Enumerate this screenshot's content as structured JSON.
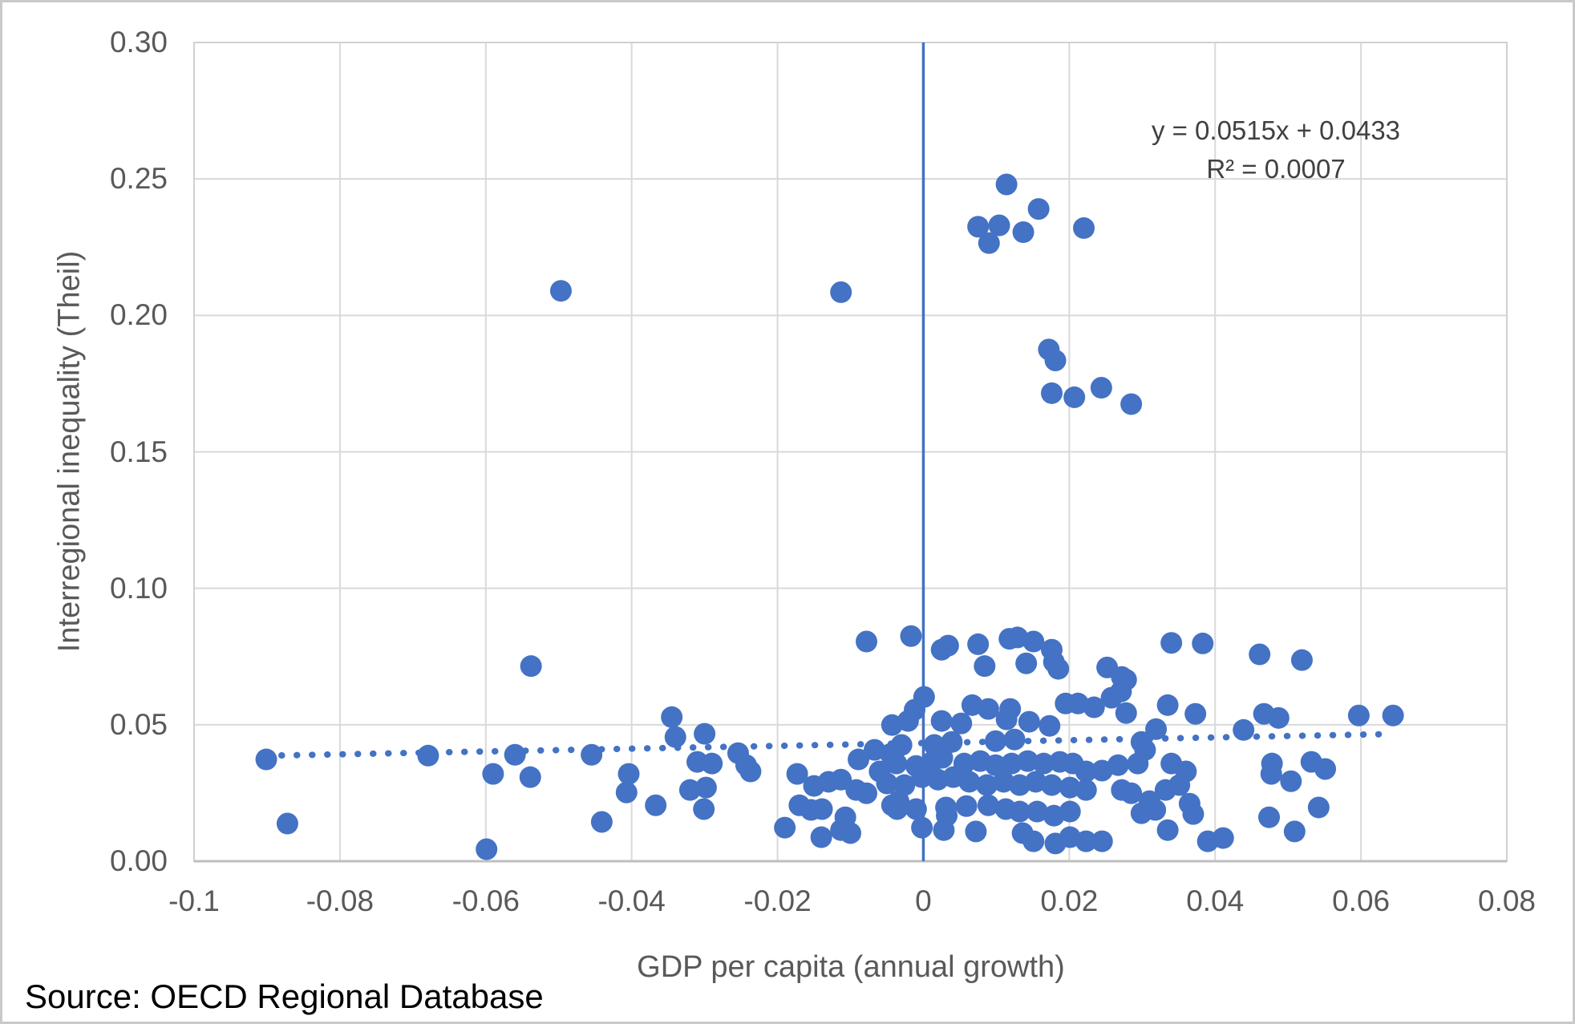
{
  "figure": {
    "source_note": "Source: OECD Regional Database"
  },
  "chart_data": {
    "type": "scatter",
    "title": "",
    "xlabel": "GDP per capita (annual growth)",
    "ylabel": "Interregional inequality (Theil)",
    "xlim": [
      -0.1,
      0.08
    ],
    "ylim": [
      0,
      0.3
    ],
    "grid": true,
    "legend": "none",
    "x_ticks": [
      {
        "value": -0.1,
        "label": "-0.1"
      },
      {
        "value": -0.08,
        "label": "-0.08"
      },
      {
        "value": -0.06,
        "label": "-0.06"
      },
      {
        "value": -0.04,
        "label": "-0.04"
      },
      {
        "value": -0.02,
        "label": "-0.02"
      },
      {
        "value": 0,
        "label": "0"
      },
      {
        "value": 0.02,
        "label": "0.02"
      },
      {
        "value": 0.04,
        "label": "0.04"
      },
      {
        "value": 0.06,
        "label": "0.06"
      },
      {
        "value": 0.08,
        "label": "0.08"
      }
    ],
    "y_ticks": [
      {
        "value": 0.0,
        "label": "0.00"
      },
      {
        "value": 0.05,
        "label": "0.05"
      },
      {
        "value": 0.1,
        "label": "0.10"
      },
      {
        "value": 0.15,
        "label": "0.15"
      },
      {
        "value": 0.2,
        "label": "0.20"
      },
      {
        "value": 0.25,
        "label": "0.25"
      },
      {
        "value": 0.3,
        "label": "0.30"
      }
    ],
    "zero_line": {
      "x": 0,
      "color": "#4472C4"
    },
    "trendline": {
      "slope": 0.0515,
      "intercept": 0.0433,
      "x_start": -0.0901,
      "x_end": 0.0641,
      "style": "dotted",
      "label_lines": [
        "y = 0.0515x + 0.0433",
        "R² = 0.0007"
      ]
    },
    "marker": {
      "color": "#4472C4",
      "radius_px": 13.5
    },
    "colors": {
      "accent": "#4472C4",
      "gridline": "#D9D9D9",
      "plot_border": "#D0D0D0",
      "axis_line": "#BFBFBF",
      "tick_text": "#595959",
      "annotation_text": "#404040"
    },
    "points": [
      [
        0.0114,
        0.248
      ],
      [
        0.0158,
        0.239
      ],
      [
        0.0075,
        0.2325
      ],
      [
        0.0104,
        0.233
      ],
      [
        0.009,
        0.2265
      ],
      [
        0.0137,
        0.2305
      ],
      [
        0.022,
        0.232
      ],
      [
        0.0172,
        0.1875
      ],
      [
        0.0181,
        0.1835
      ],
      [
        0.0176,
        0.1715
      ],
      [
        0.0207,
        0.17
      ],
      [
        0.0244,
        0.1735
      ],
      [
        0.0285,
        0.1675
      ],
      [
        -0.0497,
        0.209
      ],
      [
        -0.0113,
        0.2085
      ],
      [
        -0.0538,
        0.0715
      ],
      [
        -0.0078,
        0.0805
      ],
      [
        -0.0017,
        0.0825
      ],
      [
        0.0025,
        0.0775
      ],
      [
        0.0034,
        0.079
      ],
      [
        0.0075,
        0.0795
      ],
      [
        0.0084,
        0.0715
      ],
      [
        0.0118,
        0.0815
      ],
      [
        0.0129,
        0.082
      ],
      [
        0.0151,
        0.0805
      ],
      [
        0.0141,
        0.0725
      ],
      [
        0.0176,
        0.0775
      ],
      [
        0.0179,
        0.073
      ],
      [
        0.0185,
        0.0705
      ],
      [
        0.0252,
        0.071
      ],
      [
        0.0272,
        0.0675
      ],
      [
        0.0278,
        0.0665
      ],
      [
        0.034,
        0.08
      ],
      [
        0.0383,
        0.0798
      ],
      [
        0.0461,
        0.0758
      ],
      [
        0.0519,
        0.0737
      ],
      [
        -0.0901,
        0.0373
      ],
      [
        -0.0872,
        0.0138
      ],
      [
        -0.0679,
        0.0387
      ],
      [
        -0.059,
        0.032
      ],
      [
        -0.056,
        0.039
      ],
      [
        -0.0539,
        0.0308
      ],
      [
        -0.0599,
        0.0044
      ],
      [
        -0.0455,
        0.039
      ],
      [
        -0.0441,
        0.0144
      ],
      [
        -0.0404,
        0.032
      ],
      [
        -0.0407,
        0.0252
      ],
      [
        -0.0345,
        0.0528
      ],
      [
        -0.034,
        0.0455
      ],
      [
        -0.03,
        0.0467
      ],
      [
        -0.031,
        0.0364
      ],
      [
        -0.029,
        0.0358
      ],
      [
        -0.032,
        0.0261
      ],
      [
        -0.0298,
        0.027
      ],
      [
        -0.0301,
        0.0191
      ],
      [
        -0.0367,
        0.0205
      ],
      [
        -0.0254,
        0.0396
      ],
      [
        -0.0243,
        0.0352
      ],
      [
        -0.0237,
        0.0329
      ],
      [
        -0.0173,
        0.032
      ],
      [
        -0.015,
        0.0276
      ],
      [
        -0.013,
        0.0291
      ],
      [
        -0.0113,
        0.0299
      ],
      [
        -0.017,
        0.0205
      ],
      [
        -0.0154,
        0.0188
      ],
      [
        -0.0139,
        0.0191
      ],
      [
        -0.019,
        0.0123
      ],
      [
        -0.014,
        0.0088
      ],
      [
        -0.0113,
        0.0114
      ],
      [
        -0.01,
        0.0103
      ],
      [
        -0.0107,
        0.0161
      ],
      [
        -0.0092,
        0.0261
      ],
      [
        -0.0078,
        0.0249
      ],
      [
        -0.0089,
        0.0373
      ],
      [
        -0.0067,
        0.0408
      ],
      [
        -0.006,
        0.0329
      ],
      [
        -0.005,
        0.0285
      ],
      [
        -0.0026,
        0.0279
      ],
      [
        -0.0034,
        0.022
      ],
      [
        -0.0043,
        0.0205
      ],
      [
        -0.0036,
        0.0191
      ],
      [
        -0.0043,
        0.0499
      ],
      [
        -0.0021,
        0.0514
      ],
      [
        -0.0012,
        0.0555
      ],
      [
        -0.003,
        0.0426
      ],
      [
        -0.0045,
        0.0393
      ],
      [
        -0.0037,
        0.0358
      ],
      [
        -0.001,
        0.0349
      ],
      [
        0.0001,
        0.0602
      ],
      [
        0.0025,
        0.0514
      ],
      [
        0.0052,
        0.0505
      ],
      [
        0.0067,
        0.0572
      ],
      [
        0.0089,
        0.0558
      ],
      [
        0.0015,
        0.0426
      ],
      [
        0.0039,
        0.0437
      ],
      [
        0.0099,
        0.044
      ],
      [
        0.0012,
        0.0364
      ],
      [
        0.0026,
        0.0379
      ],
      [
        0.0056,
        0.0358
      ],
      [
        0.0078,
        0.0367
      ],
      [
        0.0099,
        0.0352
      ],
      [
        -0.0002,
        0.0308
      ],
      [
        0.002,
        0.0299
      ],
      [
        0.0041,
        0.0308
      ],
      [
        0.0063,
        0.0291
      ],
      [
        0.0087,
        0.0279
      ],
      [
        -0.001,
        0.0191
      ],
      [
        0.0031,
        0.0197
      ],
      [
        0.0032,
        0.0167
      ],
      [
        0.0059,
        0.0202
      ],
      [
        0.0089,
        0.0205
      ],
      [
        -0.0002,
        0.0123
      ],
      [
        0.0028,
        0.0114
      ],
      [
        0.0072,
        0.0109
      ],
      [
        0.0119,
        0.0558
      ],
      [
        0.0145,
        0.0511
      ],
      [
        0.0173,
        0.0496
      ],
      [
        0.0195,
        0.0578
      ],
      [
        0.0114,
        0.052
      ],
      [
        0.0125,
        0.0446
      ],
      [
        0.0121,
        0.0358
      ],
      [
        0.0143,
        0.0367
      ],
      [
        0.0165,
        0.0358
      ],
      [
        0.0187,
        0.0364
      ],
      [
        0.011,
        0.0291
      ],
      [
        0.0132,
        0.0279
      ],
      [
        0.0154,
        0.0291
      ],
      [
        0.0176,
        0.0279
      ],
      [
        0.0113,
        0.0191
      ],
      [
        0.0132,
        0.0182
      ],
      [
        0.0156,
        0.0182
      ],
      [
        0.0179,
        0.0167
      ],
      [
        0.0136,
        0.0103
      ],
      [
        0.0151,
        0.0073
      ],
      [
        0.0181,
        0.0065
      ],
      [
        0.0212,
        0.0578
      ],
      [
        0.0234,
        0.0564
      ],
      [
        0.0258,
        0.0599
      ],
      [
        0.0271,
        0.0622
      ],
      [
        0.0205,
        0.0358
      ],
      [
        0.0223,
        0.0329
      ],
      [
        0.0245,
        0.0332
      ],
      [
        0.0201,
        0.027
      ],
      [
        0.0223,
        0.0261
      ],
      [
        0.0201,
        0.0182
      ],
      [
        0.0201,
        0.0088
      ],
      [
        0.0223,
        0.0073
      ],
      [
        0.0245,
        0.0073
      ],
      [
        0.0267,
        0.0352
      ],
      [
        0.0272,
        0.0261
      ],
      [
        0.0285,
        0.0249
      ],
      [
        0.0299,
        0.0437
      ],
      [
        0.0294,
        0.0358
      ],
      [
        0.0299,
        0.0176
      ],
      [
        0.0335,
        0.0572
      ],
      [
        0.0373,
        0.054
      ],
      [
        0.0278,
        0.0543
      ],
      [
        0.0319,
        0.0484
      ],
      [
        0.0304,
        0.0408
      ],
      [
        0.031,
        0.022
      ],
      [
        0.0332,
        0.0261
      ],
      [
        0.0351,
        0.0279
      ],
      [
        0.0318,
        0.0188
      ],
      [
        0.0365,
        0.0211
      ],
      [
        0.037,
        0.0173
      ],
      [
        0.034,
        0.0358
      ],
      [
        0.036,
        0.0329
      ],
      [
        0.0335,
        0.0114
      ],
      [
        0.039,
        0.0073
      ],
      [
        0.0411,
        0.0085
      ],
      [
        0.0439,
        0.0481
      ],
      [
        0.0467,
        0.054
      ],
      [
        0.0487,
        0.0525
      ],
      [
        0.0597,
        0.0534
      ],
      [
        0.0644,
        0.0534
      ],
      [
        0.0478,
        0.0358
      ],
      [
        0.0477,
        0.032
      ],
      [
        0.0504,
        0.0293
      ],
      [
        0.0532,
        0.0364
      ],
      [
        0.0551,
        0.0338
      ],
      [
        0.0474,
        0.0161
      ],
      [
        0.0509,
        0.0109
      ],
      [
        0.0542,
        0.0197
      ]
    ]
  }
}
